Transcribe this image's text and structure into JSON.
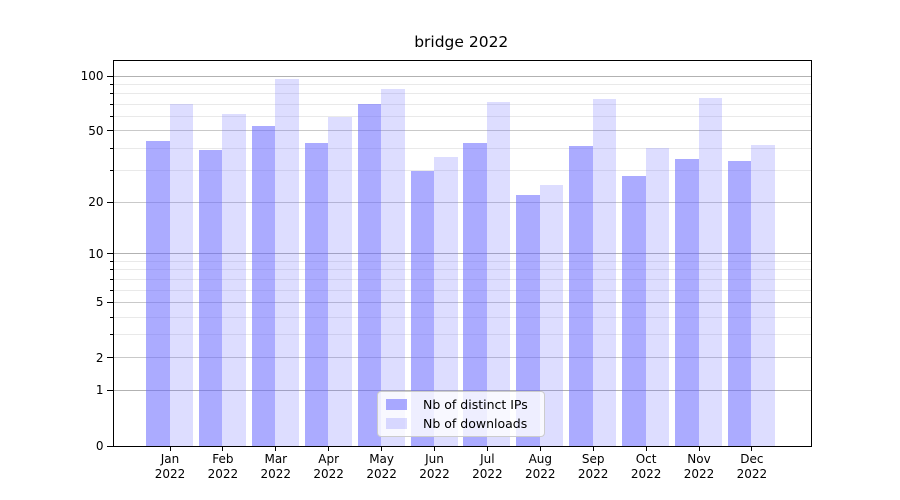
{
  "title": "bridge 2022",
  "chart_data": {
    "type": "bar",
    "title": "bridge 2022",
    "yscale": "symlog",
    "grid": true,
    "legend_position": "lower center",
    "x_year": "2022",
    "categories": [
      "Jan 2022",
      "Feb 2022",
      "Mar 2022",
      "Apr 2022",
      "May 2022",
      "Jun 2022",
      "Jul 2022",
      "Aug 2022",
      "Sep 2022",
      "Oct 2022",
      "Nov 2022",
      "Dec 2022"
    ],
    "months": [
      "Jan",
      "Feb",
      "Mar",
      "Apr",
      "May",
      "Jun",
      "Jul",
      "Aug",
      "Sep",
      "Oct",
      "Nov",
      "Dec"
    ],
    "series": [
      {
        "name": "Nb of distinct IPs",
        "color": "rgba(102,102,255,0.55)",
        "values": [
          44,
          39,
          53,
          43,
          70,
          30,
          43,
          22,
          41,
          28,
          35,
          34
        ]
      },
      {
        "name": "Nb of downloads",
        "color": "rgba(102,102,255,0.22)",
        "values": [
          70,
          62,
          97,
          60,
          85,
          36,
          72,
          25,
          75,
          40,
          76,
          42
        ]
      }
    ],
    "ylim": [
      0,
      121
    ],
    "yticks_labeled": [
      0,
      1,
      2,
      5,
      10,
      20,
      50,
      100
    ],
    "yticks_decade": [
      1,
      10,
      100
    ],
    "yticks_mid": [
      2,
      5,
      20,
      50
    ],
    "yticks_minor": [
      3,
      4,
      6,
      7,
      8,
      9,
      30,
      40,
      60,
      70,
      80,
      90
    ],
    "colors": {
      "grid_decade": "#b2b2b2",
      "grid_mid": "#c9c9c9",
      "grid_minor": "#e9e9e9",
      "axis": "#000000",
      "text": "#000000",
      "legend_bg": "rgba(255,255,255,0.8)",
      "legend_border": "#cccccc"
    }
  }
}
